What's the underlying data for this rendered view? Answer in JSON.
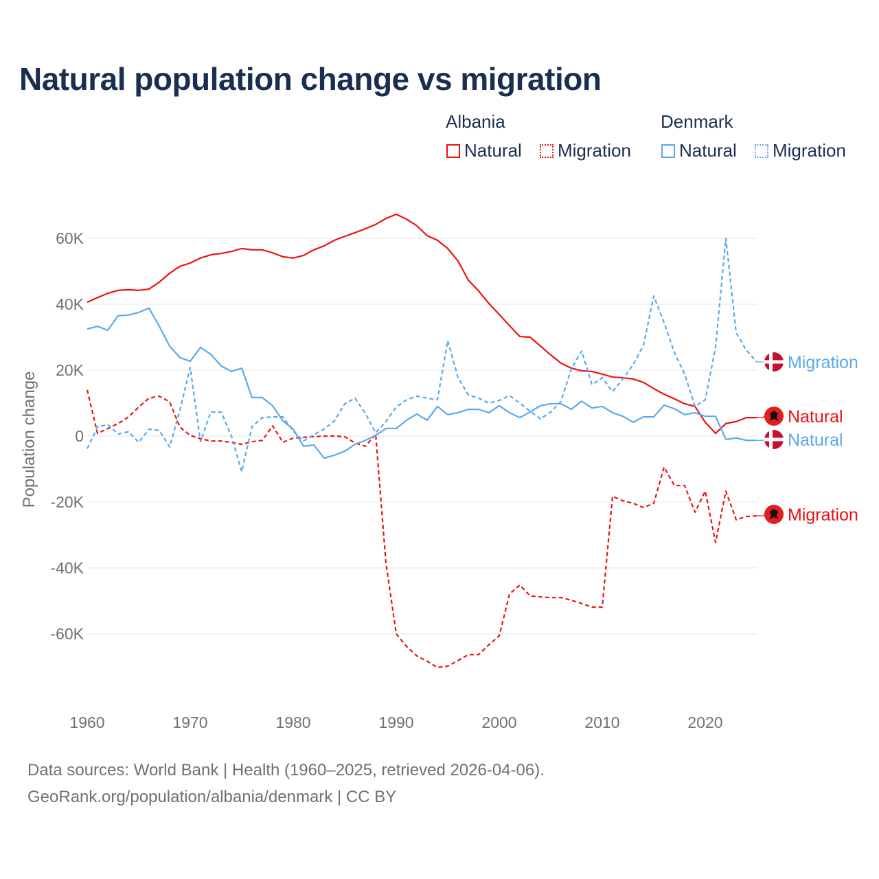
{
  "chart_data": {
    "type": "line",
    "title": "Natural population change vs migration",
    "xlabel": "",
    "ylabel": "Population change",
    "xlim": [
      1960,
      2025
    ],
    "ylim": [
      -75000,
      70000
    ],
    "x_ticks": [
      1960,
      1970,
      1980,
      1990,
      2000,
      2010,
      2020
    ],
    "x_tick_labels": [
      "1960",
      "1970",
      "1980",
      "1990",
      "2000",
      "2010",
      "2020"
    ],
    "y_ticks": [
      60000,
      40000,
      20000,
      0,
      -20000,
      -40000,
      -60000
    ],
    "y_tick_labels": [
      "60K",
      "40K",
      "20K",
      "0",
      "-20K",
      "-40K",
      "-60K"
    ],
    "grid": true,
    "legend_placement": "top-right",
    "legend_groups": [
      "Albania",
      "Denmark"
    ],
    "x": [
      1960,
      1961,
      1962,
      1963,
      1964,
      1965,
      1966,
      1967,
      1968,
      1969,
      1970,
      1971,
      1972,
      1973,
      1974,
      1975,
      1976,
      1977,
      1978,
      1979,
      1980,
      1981,
      1982,
      1983,
      1984,
      1985,
      1986,
      1987,
      1988,
      1989,
      1990,
      1991,
      1992,
      1993,
      1994,
      1995,
      1996,
      1997,
      1998,
      1999,
      2000,
      2001,
      2002,
      2003,
      2004,
      2005,
      2006,
      2007,
      2008,
      2009,
      2010,
      2011,
      2012,
      2013,
      2014,
      2015,
      2016,
      2017,
      2018,
      2019,
      2020,
      2021,
      2022,
      2023,
      2024,
      2025
    ],
    "series": [
      {
        "country": "Albania",
        "name": "Natural",
        "legend_label": "Natural",
        "end_label": "Natural",
        "color": "#ee1111",
        "dash": false,
        "flag": "albania",
        "values": [
          40600,
          42000,
          43300,
          44200,
          44400,
          44200,
          44600,
          46700,
          49400,
          51500,
          52500,
          54000,
          55000,
          55400,
          56000,
          56900,
          56500,
          56500,
          55600,
          54400,
          54000,
          54800,
          56500,
          57700,
          59400,
          60600,
          61700,
          62900,
          64200,
          66000,
          67300,
          65800,
          63800,
          60800,
          59400,
          56900,
          53100,
          47300,
          44000,
          40200,
          36900,
          33500,
          30200,
          30000,
          27300,
          24600,
          22100,
          20600,
          19800,
          19600,
          18800,
          17900,
          17700,
          17300,
          16300,
          14400,
          12700,
          11300,
          9800,
          9000,
          4200,
          800,
          3800,
          4400,
          5600,
          5600
        ]
      },
      {
        "country": "Albania",
        "name": "Migration",
        "legend_label": "Migration",
        "end_label": "Migration",
        "color": "#ee1111",
        "dash": true,
        "flag": "albania",
        "values": [
          14000,
          800,
          2300,
          3800,
          5800,
          8800,
          11500,
          12100,
          10400,
          2700,
          200,
          -800,
          -1500,
          -1500,
          -1900,
          -2500,
          -1700,
          -1300,
          3100,
          -1900,
          -600,
          -400,
          -200,
          0,
          0,
          -200,
          -2100,
          -3100,
          600,
          -38500,
          -60000,
          -63800,
          -66700,
          -68300,
          -70200,
          -69800,
          -68100,
          -66300,
          -66300,
          -63300,
          -60600,
          -47900,
          -45200,
          -48500,
          -48800,
          -49000,
          -49000,
          -49800,
          -50800,
          -51900,
          -51900,
          -18300,
          -19600,
          -20400,
          -21700,
          -20400,
          -9400,
          -15000,
          -15000,
          -23100,
          -16700,
          -32300,
          -16700,
          -25400,
          -24400,
          -24200
        ]
      },
      {
        "country": "Denmark",
        "name": "Natural",
        "legend_label": "Natural",
        "end_label": "Natural",
        "color": "#5ca8ec",
        "dash": false,
        "flag": "denmark",
        "values": [
          32500,
          33300,
          32100,
          36500,
          36700,
          37500,
          38800,
          33300,
          27300,
          23800,
          22700,
          26900,
          24800,
          21300,
          19600,
          20600,
          11700,
          11700,
          9200,
          4600,
          2100,
          -3100,
          -2700,
          -6700,
          -5800,
          -4600,
          -2500,
          -1300,
          200,
          2300,
          2300,
          4800,
          6700,
          4800,
          9000,
          6500,
          7100,
          8100,
          8100,
          7100,
          9200,
          7100,
          5600,
          7300,
          9200,
          9800,
          9800,
          8100,
          10600,
          8500,
          9000,
          7100,
          6000,
          4200,
          5800,
          5800,
          9400,
          8300,
          6500,
          7100,
          6000,
          6000,
          -1000,
          -600,
          -1300,
          -1300
        ]
      },
      {
        "country": "Denmark",
        "name": "Migration",
        "legend_label": "Migration",
        "end_label": "Migration",
        "color": "#5ca8ec",
        "dash": true,
        "flag": "denmark",
        "values": [
          -3800,
          2700,
          3500,
          600,
          1300,
          -1900,
          2100,
          1700,
          -3300,
          7900,
          20800,
          -1700,
          7300,
          7300,
          0,
          -10800,
          2900,
          5600,
          5800,
          5800,
          1500,
          -1500,
          400,
          2100,
          4600,
          9800,
          11500,
          6900,
          1000,
          4400,
          8800,
          11000,
          12100,
          11500,
          11000,
          29000,
          17700,
          12500,
          11500,
          10000,
          10800,
          12300,
          10000,
          7500,
          5200,
          7300,
          10600,
          20400,
          25800,
          15600,
          17700,
          13500,
          17300,
          21700,
          27500,
          42500,
          34400,
          25400,
          18800,
          9000,
          11000,
          26900,
          60000,
          31300,
          26000,
          22500
        ]
      }
    ]
  },
  "footer": {
    "line1": "Data sources: World Bank | Health (1960–2025, retrieved 2026-04-06).",
    "line2": "GeoRank.org/population/albania/denmark | CC BY"
  }
}
